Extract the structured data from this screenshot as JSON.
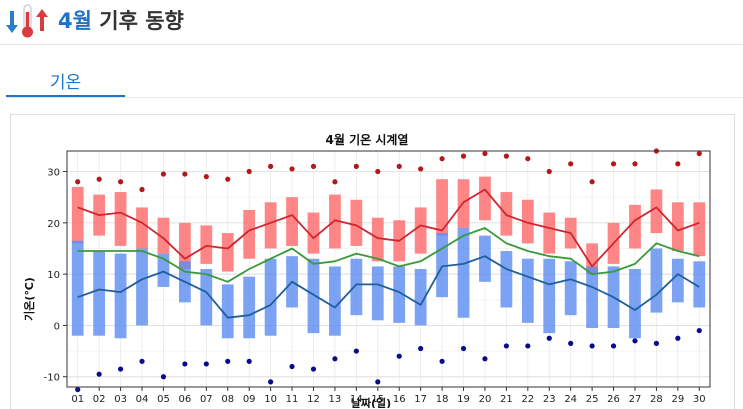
{
  "header": {
    "title_accent": "4월",
    "title_rest": " 기후 동향",
    "icon": "thermometer-up-down-icon"
  },
  "tab": {
    "label": "기온"
  },
  "colors": {
    "accent": "#1e73c8",
    "max_band": "#ff6b6b",
    "max_line": "#d0262d",
    "mean_line": "#3a9a3a",
    "min_band": "#5e8df0",
    "min_line": "#1f5f9c",
    "max_extreme": "#b51818",
    "min_extreme": "#0a0a8c"
  },
  "chart_data": {
    "type": "line",
    "title": "4월 기온 시계열",
    "xlabel": "날짜(일)",
    "ylabel": "기온(℃)",
    "ylim": [
      -12,
      34
    ],
    "yticks": [
      -10,
      0,
      10,
      20,
      30
    ],
    "grid": true,
    "legend": "none",
    "categories": [
      "01",
      "02",
      "03",
      "04",
      "05",
      "06",
      "07",
      "08",
      "09",
      "10",
      "11",
      "12",
      "13",
      "14",
      "15",
      "16",
      "17",
      "18",
      "19",
      "20",
      "21",
      "22",
      "23",
      "24",
      "25",
      "26",
      "27",
      "28",
      "29",
      "30"
    ],
    "series": [
      {
        "kind": "line",
        "color": "#d0262d",
        "values": [
          23,
          21.5,
          22,
          20,
          17,
          13,
          15.5,
          15,
          18.5,
          20,
          21.5,
          17,
          20.5,
          19.5,
          17,
          16.5,
          19.5,
          18.5,
          24,
          26.5,
          21.5,
          20,
          19,
          18,
          11.5,
          16,
          20.5,
          23,
          18.5,
          20
        ]
      },
      {
        "kind": "line",
        "color": "#3a9a3a",
        "values": [
          14.5,
          14.5,
          14.5,
          14.5,
          13,
          10.5,
          10,
          8.5,
          11,
          13,
          15,
          12,
          12.5,
          14,
          13,
          11.5,
          12.5,
          15,
          17.5,
          19,
          16,
          14.5,
          13.5,
          13,
          10,
          10.5,
          12,
          16,
          14.5,
          13.5
        ]
      },
      {
        "kind": "line",
        "color": "#1f5f9c",
        "values": [
          5.5,
          7,
          6.5,
          9,
          10.5,
          8.5,
          6.5,
          1.5,
          2,
          4,
          8.5,
          6,
          3.5,
          8,
          8,
          6.5,
          4,
          11.5,
          12,
          13.5,
          11,
          9.5,
          8,
          9,
          7.5,
          5.5,
          3,
          6,
          10,
          7.5
        ]
      },
      {
        "kind": "band",
        "color": "#ff6b6b",
        "low": [
          16,
          17.5,
          15.5,
          15,
          14,
          11,
          12,
          10.5,
          13,
          15,
          15.5,
          14,
          15,
          15.5,
          12.5,
          12.5,
          14,
          17.5,
          19,
          20.5,
          17.5,
          16,
          14,
          15,
          10,
          12,
          15,
          18,
          14.5,
          13.5
        ],
        "high": [
          27,
          25.5,
          26,
          23,
          21,
          20,
          19.5,
          18,
          22.5,
          24,
          25,
          22,
          25.5,
          24.5,
          21,
          20.5,
          23,
          28.5,
          28.5,
          29,
          26,
          24.5,
          22,
          21,
          16,
          20,
          23.5,
          26.5,
          24,
          24
        ]
      },
      {
        "kind": "band",
        "color": "#5e8df0",
        "low": [
          -2,
          -2,
          -2.5,
          0,
          7.5,
          4.5,
          0,
          -2.5,
          -2.5,
          -2,
          3.5,
          -1.5,
          -2,
          2,
          1,
          0.5,
          0,
          5.5,
          1.5,
          8.5,
          3.5,
          0.5,
          -1.5,
          2,
          -0.5,
          -0.5,
          -2.5,
          2.5,
          4.5,
          3.5
        ],
        "high": [
          16.5,
          14.5,
          14,
          15,
          14,
          12.5,
          11,
          8,
          9.5,
          13,
          13.5,
          13,
          11.5,
          13,
          11.5,
          11.5,
          11,
          18,
          19,
          17.5,
          14.5,
          13,
          13,
          12.5,
          11.5,
          11.5,
          11,
          15,
          13,
          12.5
        ]
      },
      {
        "kind": "points",
        "color": "#b51818",
        "values": [
          28,
          28.5,
          28,
          26.5,
          29.5,
          29.5,
          29,
          28.5,
          30,
          31,
          30.5,
          31,
          28,
          31,
          30,
          31,
          30.5,
          32.5,
          33,
          33.5,
          33,
          32.5,
          30,
          31.5,
          28,
          31.5,
          31.5,
          34,
          31.5,
          33.5
        ]
      },
      {
        "kind": "points",
        "color": "#0a0a8c",
        "values": [
          -12.5,
          -9.5,
          -8.5,
          -7,
          -10,
          -7.5,
          -7.5,
          -7,
          -7,
          -11,
          -8,
          -8.5,
          -6.5,
          -5,
          -11,
          -6,
          -4.5,
          -7,
          -4.5,
          -6.5,
          -4,
          -4,
          -2.5,
          -3.5,
          -4,
          -4,
          -3,
          -3.5,
          -2.5,
          -1
        ]
      }
    ]
  }
}
